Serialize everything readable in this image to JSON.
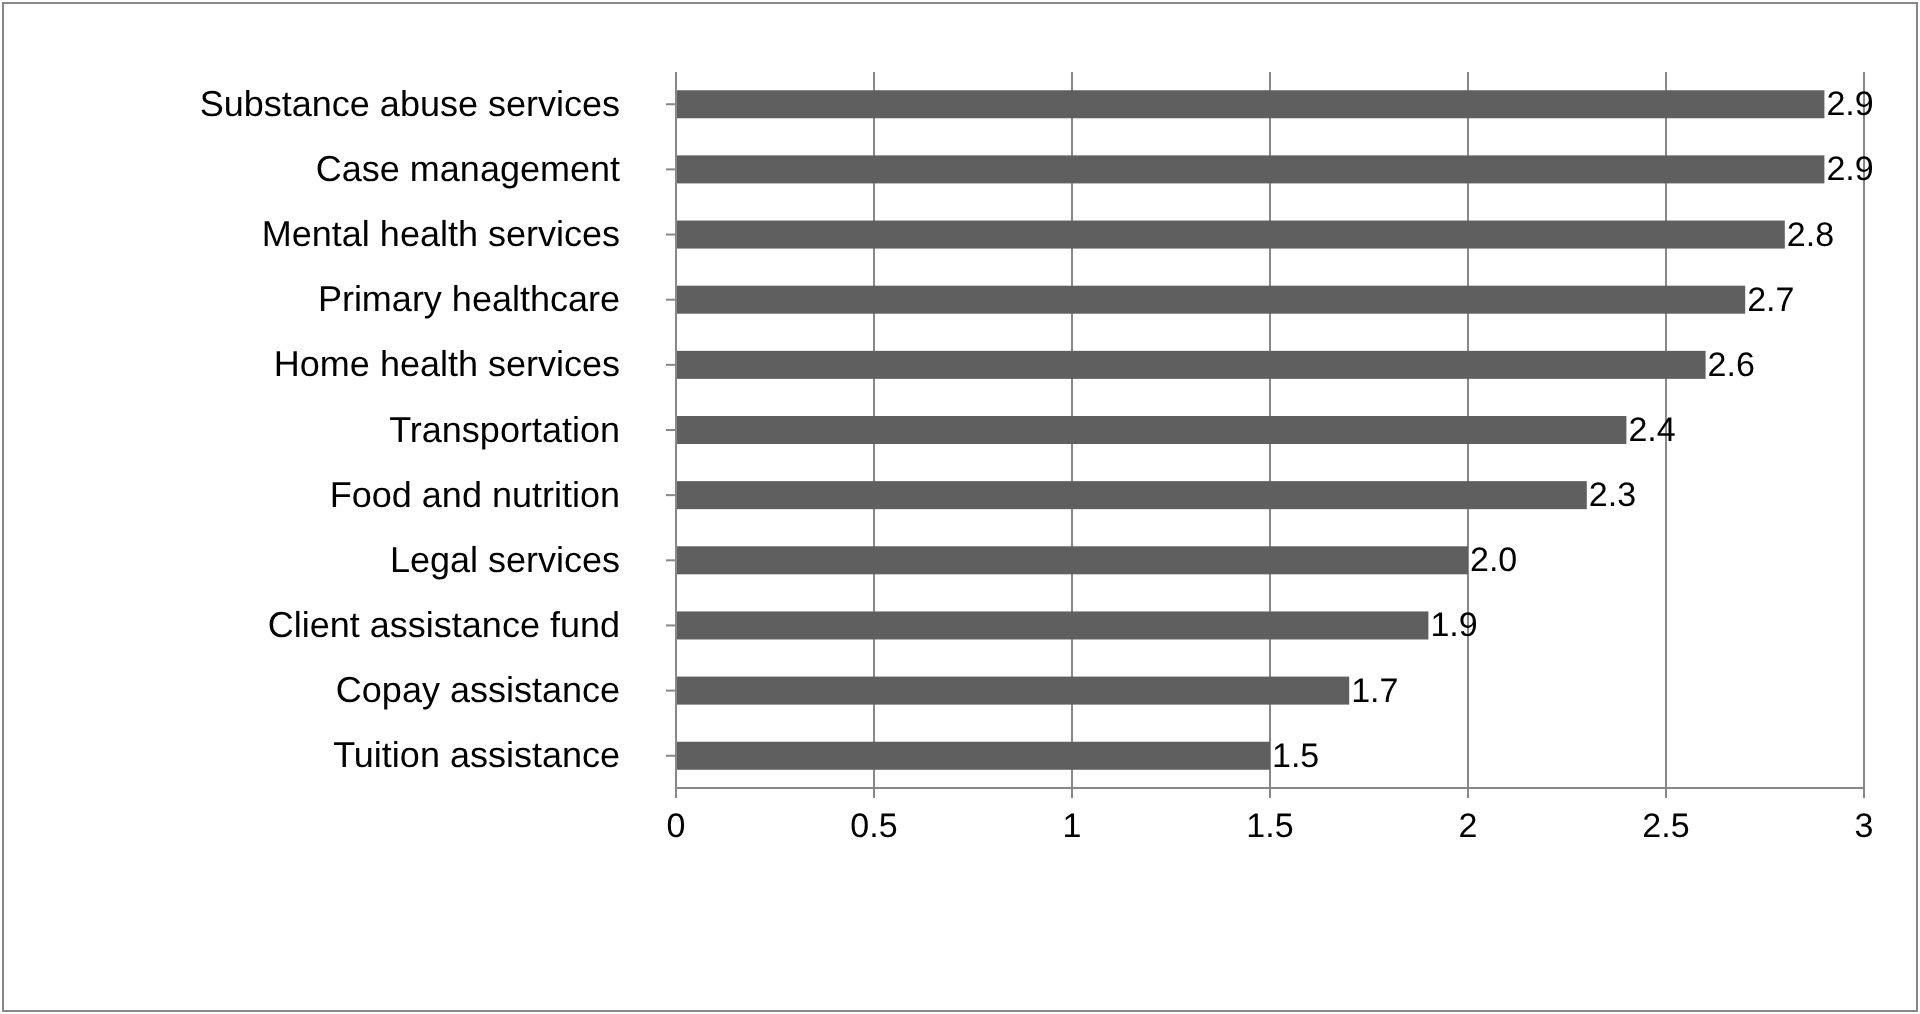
{
  "chart_data": {
    "type": "bar",
    "orientation": "horizontal",
    "categories": [
      "Substance abuse services",
      "Case management",
      "Mental health services",
      "Primary healthcare",
      "Home health services",
      "Transportation",
      "Food and nutrition",
      "Legal services",
      "Client assistance fund",
      "Copay assistance",
      "Tuition assistance"
    ],
    "values": [
      2.9,
      2.9,
      2.8,
      2.7,
      2.6,
      2.4,
      2.3,
      2.0,
      1.9,
      1.7,
      1.5
    ],
    "value_labels": [
      "2.9",
      "2.9",
      "2.8",
      "2.7",
      "2.6",
      "2.4",
      "2.3",
      "2.0",
      "1.9",
      "1.7",
      "1.5"
    ],
    "color": "#5f5f5f",
    "xlim": [
      0,
      3
    ],
    "xticks": [
      0,
      0.5,
      1,
      1.5,
      2,
      2.5,
      3
    ],
    "grid": "x"
  }
}
